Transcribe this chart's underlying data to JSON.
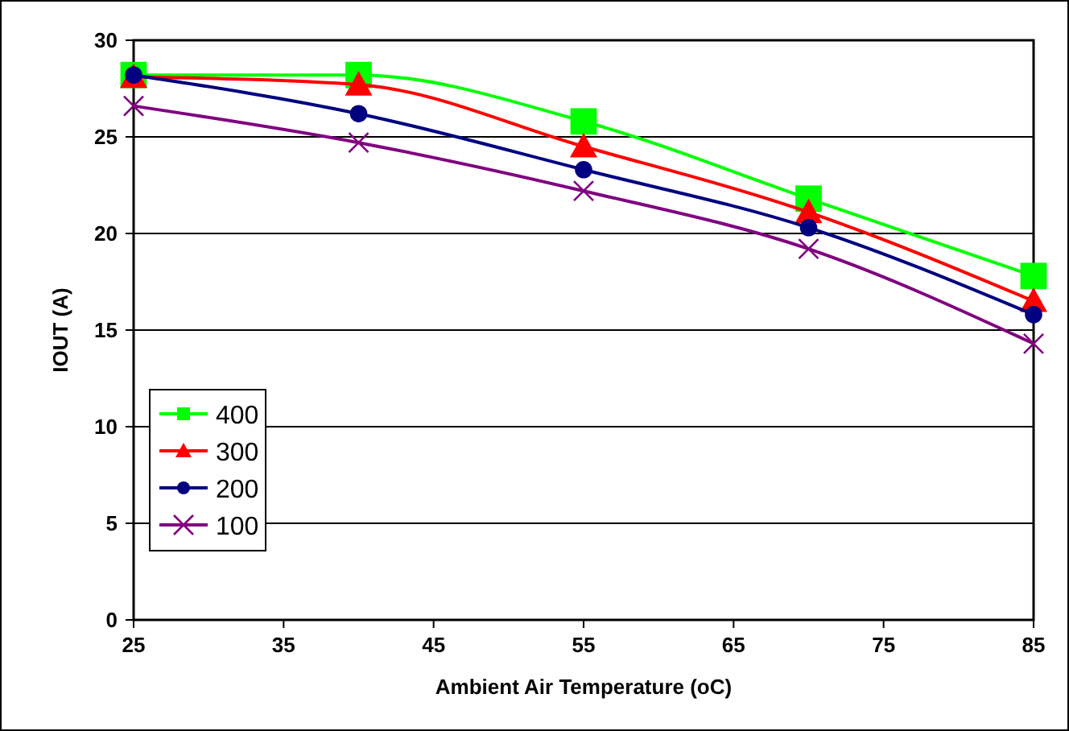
{
  "chart_data": {
    "type": "line",
    "xlabel": "Ambient Air Temperature (oC)",
    "ylabel": "IOUT (A)",
    "x": [
      25,
      40,
      55,
      70,
      85
    ],
    "xlim": [
      25,
      85
    ],
    "xticks": [
      25,
      35,
      45,
      55,
      65,
      75,
      85
    ],
    "ylim": [
      0,
      30
    ],
    "yticks": [
      0,
      5,
      10,
      15,
      20,
      25,
      30
    ],
    "grid": "y",
    "legend": "bottom left",
    "series": [
      {
        "name": "400",
        "color": "#00ff00",
        "marker": "square",
        "values": [
          28.2,
          28.2,
          25.8,
          21.8,
          17.8
        ]
      },
      {
        "name": "300",
        "color": "#ff0000",
        "marker": "triangle",
        "values": [
          28.1,
          27.7,
          24.5,
          21.1,
          16.5
        ]
      },
      {
        "name": "200",
        "color": "#000080",
        "marker": "circle",
        "values": [
          28.2,
          26.2,
          23.3,
          20.3,
          15.8
        ]
      },
      {
        "name": "100",
        "color": "#800080",
        "marker": "cross",
        "values": [
          26.6,
          24.7,
          22.2,
          19.2,
          14.3
        ]
      }
    ]
  }
}
